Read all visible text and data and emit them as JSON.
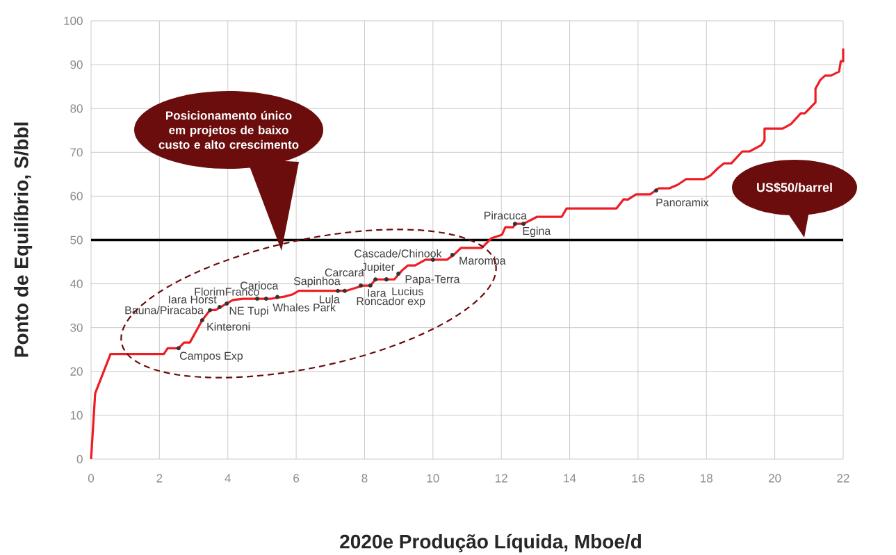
{
  "chart_data": {
    "type": "line",
    "xlabel": "2020e Produção Líquida, Mboe/d",
    "ylabel": "Ponto de Equilíbrio, S/bbl",
    "series": [
      {
        "color": "#ee1c25",
        "x": [
          0,
          0.12,
          0.57,
          2.13,
          2.24,
          2.56,
          2.72,
          2.89,
          3.25,
          3.48,
          3.64,
          3.97,
          4.15,
          4.45,
          5.27,
          5.67,
          5.9,
          6.08,
          7.46,
          7.75,
          7.97,
          8.17,
          8.32,
          8.87,
          9.09,
          9.27,
          9.48,
          9.78,
          10.41,
          10.61,
          10.82,
          11.43,
          11.71,
          12.02,
          12.12,
          12.34,
          12.42,
          12.65,
          13.05,
          13.77,
          13.91,
          15.37,
          15.58,
          15.7,
          15.94,
          16.35,
          16.61,
          16.92,
          17.16,
          17.41,
          17.93,
          18.12,
          18.34,
          18.52,
          18.73,
          19.05,
          19.26,
          19.6,
          19.7,
          19.7,
          20.23,
          20.48,
          20.76,
          20.88,
          21.19,
          21.19,
          21.33,
          21.47,
          21.64,
          21.88,
          21.93,
          22,
          22
        ],
        "values": [
          0,
          15,
          24,
          24,
          25.3,
          25.3,
          26.6,
          26.6,
          31.7,
          34,
          34,
          35.5,
          36.3,
          36.6,
          36.6,
          37.1,
          37.6,
          38.4,
          38.4,
          39.1,
          39.6,
          39.6,
          41,
          41,
          43,
          44.2,
          44.2,
          45.5,
          45.5,
          46.6,
          48.2,
          48.2,
          50.4,
          51.2,
          52.9,
          52.9,
          53.7,
          53.7,
          55.3,
          55.3,
          57.2,
          57.2,
          59.3,
          59.2,
          60.4,
          60.4,
          61.8,
          61.8,
          62.6,
          63.9,
          63.9,
          64.7,
          66.4,
          67.5,
          67.5,
          70.2,
          70.2,
          71.6,
          72.7,
          75.4,
          75.4,
          76.5,
          78.9,
          78.9,
          81.4,
          84.5,
          86.5,
          87.5,
          87.5,
          88.4,
          90.8,
          90.8,
          93.7
        ]
      }
    ],
    "xlim": [
      0,
      22
    ],
    "ylim": [
      0,
      100
    ],
    "xticks": [
      0,
      2,
      4,
      6,
      8,
      10,
      12,
      14,
      16,
      18,
      20,
      22
    ],
    "yticks": [
      0,
      10,
      20,
      30,
      40,
      50,
      60,
      70,
      80,
      90,
      100
    ],
    "grid": true,
    "marker": "none",
    "line_style": "solid",
    "ref_lines": [
      {
        "axis": "y",
        "value": 50,
        "color": "#000000"
      }
    ],
    "annotations": [
      "Posicionamento único em projetos de baixo custo e alto crescimento",
      "US$50/barrel",
      {
        "text": "Campos Exp",
        "x": 2.56,
        "y": 25.3
      },
      {
        "text": "Kinteroni",
        "x": 3.25,
        "y": 31.7
      },
      {
        "text": "Bauna/Piracaba",
        "x": 3.48,
        "y": 34
      },
      {
        "text": "Iara Horst",
        "x": 3.76,
        "y": 34.7
      },
      {
        "text": "FlorimFranco",
        "x": 3.97,
        "y": 35.5
      },
      {
        "text": "NE Tupi",
        "x": 4.86,
        "y": 36.6
      },
      {
        "text": "Carioca",
        "x": 5.12,
        "y": 36.6
      },
      {
        "text": "Whales Park",
        "x": 5.45,
        "y": 37
      },
      {
        "text": "Lula",
        "x": 7.22,
        "y": 38.4
      },
      {
        "text": "Sapinhoa",
        "x": 7.42,
        "y": 38.4
      },
      {
        "text": "Carcara",
        "x": 7.89,
        "y": 39.6
      },
      {
        "text": "Iara",
        "x": 8.17,
        "y": 39.6
      },
      {
        "text": "Roncador exp",
        "x": 8.32,
        "y": 41
      },
      {
        "text": "Jupiter",
        "x": 8.64,
        "y": 41
      },
      {
        "text": "Lucius",
        "x": 8.64,
        "y": 41
      },
      {
        "text": "Papa-Terra",
        "x": 8.99,
        "y": 42.3
      },
      {
        "text": "Cascade/Chinook",
        "x": 10.0,
        "y": 45.5
      },
      {
        "text": "Maromba",
        "x": 10.57,
        "y": 46.6
      },
      {
        "text": "Piracuca",
        "x": 12.4,
        "y": 53.7
      },
      {
        "text": "Egina",
        "x": 12.65,
        "y": 53.7
      },
      {
        "text": "Panoramix",
        "x": 16.53,
        "y": 61.3
      }
    ]
  }
}
